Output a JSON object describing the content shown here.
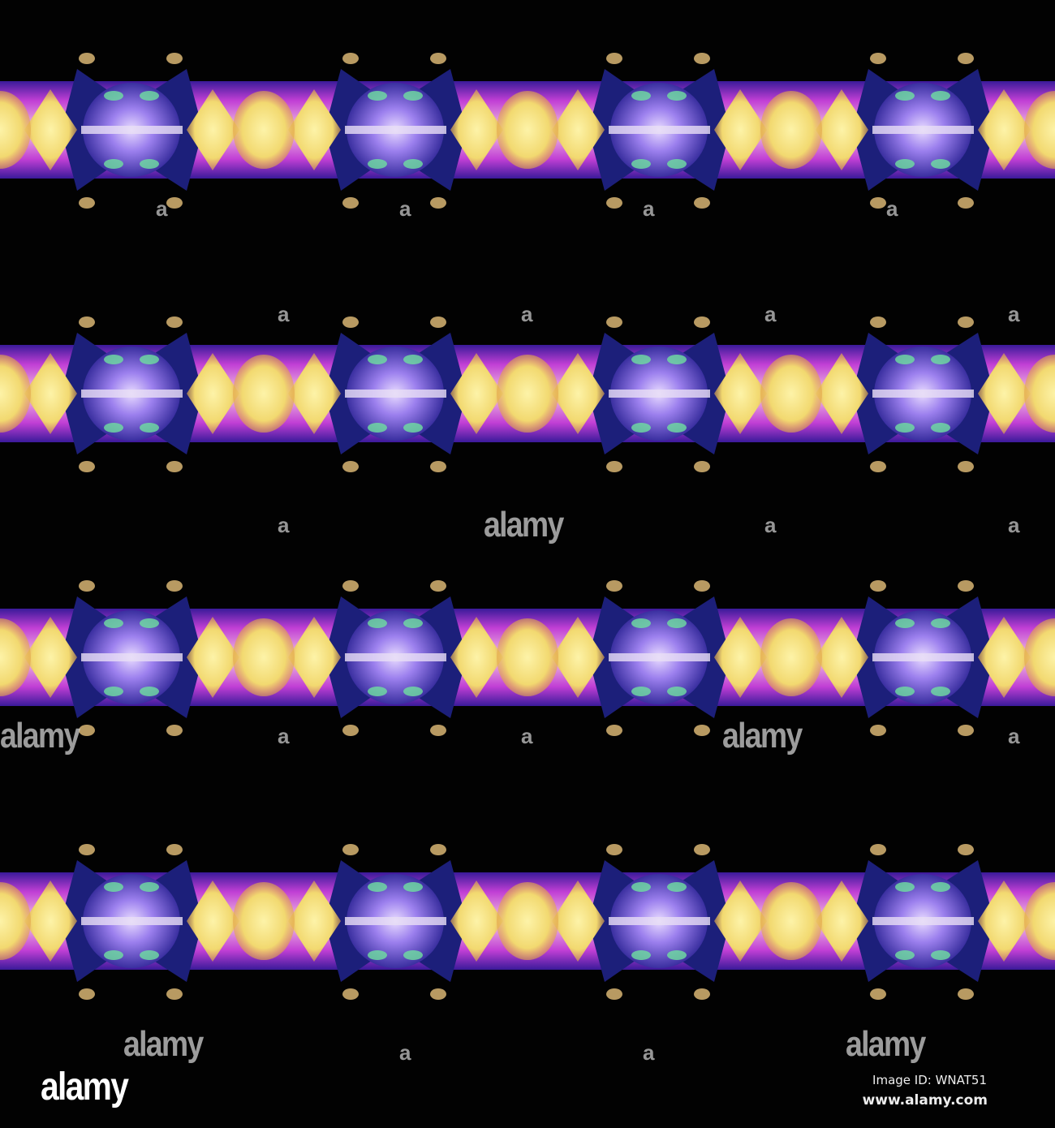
{
  "image": {
    "subject": "kaleidoscopic seamless pattern",
    "colors": {
      "background": "#020202",
      "yellow": "#f5e27a",
      "gold": "#e8b33c",
      "violet": "#9a7ce8",
      "navy": "#1c1f7a",
      "magenta": "#c23fd6",
      "green": "#6fe0a0"
    }
  },
  "watermark": {
    "brand": "alamy",
    "letter": "a",
    "image_id": "Image ID: WNAT51",
    "site": "www.alamy.com"
  }
}
